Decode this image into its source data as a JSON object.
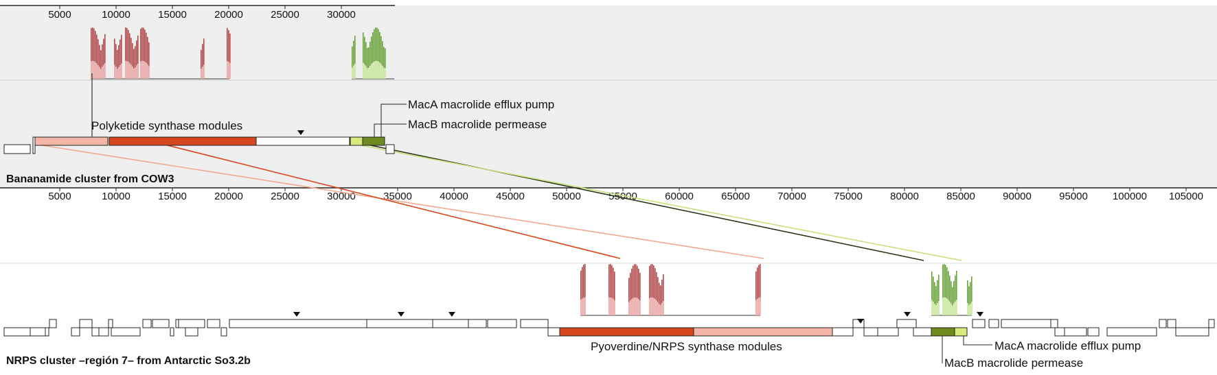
{
  "top_axis": {
    "ticks": [
      "5000",
      "10000",
      "15000",
      "20000",
      "25000",
      "30000"
    ]
  },
  "main_axis": {
    "ticks": [
      "5000",
      "10000",
      "15000",
      "20000",
      "25000",
      "30000",
      "35000",
      "40000",
      "45000",
      "50000",
      "55000",
      "60000",
      "65000",
      "70000",
      "75000",
      "80000",
      "85000",
      "90000",
      "95000",
      "100000",
      "105000"
    ]
  },
  "cluster1": {
    "title": "Bananamide cluster from COW3",
    "labels": {
      "pks": "Polyketide synthase modules",
      "maca": "MacA macrolide efflux pump",
      "macb": "MacB macrolide permease"
    }
  },
  "cluster2": {
    "title": "NRPS cluster –región 7– from Antarctic So3.2b",
    "labels": {
      "nrps": "Pyoverdine/NRPS synthase modules",
      "maca": "MacA macrolide efflux pump",
      "macb": "MacB macrolide permease"
    }
  },
  "colors": {
    "pks_light": "#f2b6a6",
    "pks_dark": "#d6461f",
    "mac_light": "#d7ea7e",
    "mac_dark": "#6e8a1c",
    "link_dark": "#2b3518",
    "link_light": "#c6e07a",
    "hist_red": "#b04a4a",
    "hist_pink": "#f3b7b7",
    "hist_green": "#6aa33c",
    "hist_lightgreen": "#d9f2b0",
    "panel_bg": "#efefef"
  }
}
